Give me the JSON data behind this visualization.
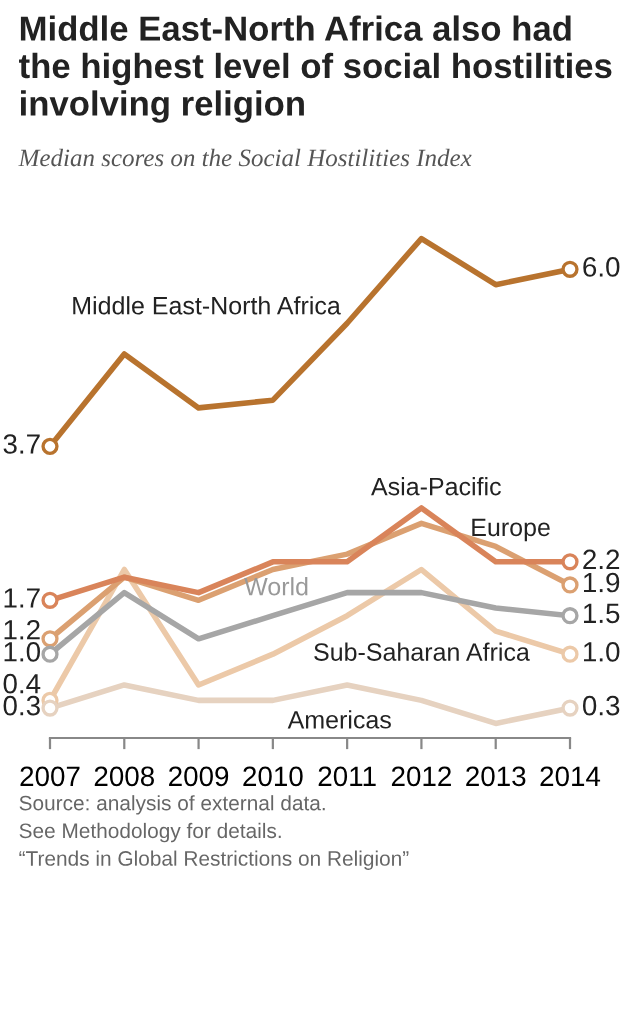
{
  "chart_data": {
    "type": "line",
    "title": "Middle East-North Africa also had the highest level of social hostilities involving religion",
    "subtitle": "Median scores on the Social Hostilities Index",
    "categories": [
      "2007",
      "2008",
      "2009",
      "2010",
      "2011",
      "2012",
      "2013",
      "2014"
    ],
    "tick_labels": "x",
    "grid": false,
    "legend": false,
    "line_style": "solid",
    "series": [
      {
        "name": "Middle East-North Africa",
        "color": "#b8732e",
        "values": [
          3.7,
          4.9,
          4.2,
          4.3,
          5.3,
          6.4,
          5.8,
          6.0
        ],
        "value_labels": [
          "3.7",
          null,
          null,
          null,
          null,
          null,
          null,
          "6.0"
        ]
      },
      {
        "name": "Asia-Pacific",
        "color": "#d9845a",
        "values": [
          1.7,
          2.0,
          1.8,
          2.2,
          2.2,
          2.9,
          2.2,
          2.2
        ],
        "value_labels": [
          "1.7",
          null,
          null,
          null,
          null,
          null,
          null,
          "2.2"
        ]
      },
      {
        "name": "Europe",
        "color": "#dba071",
        "values": [
          1.2,
          2.0,
          1.7,
          2.1,
          2.3,
          2.7,
          2.4,
          1.9
        ],
        "value_labels": [
          "1.2",
          null,
          null,
          null,
          null,
          null,
          null,
          "1.9"
        ]
      },
      {
        "name": "World",
        "color": "#a6a6a6",
        "values": [
          1.0,
          1.8,
          1.2,
          1.5,
          1.8,
          1.8,
          1.6,
          1.5
        ],
        "value_labels": [
          "1.0",
          null,
          null,
          null,
          null,
          null,
          null,
          "1.5"
        ]
      },
      {
        "name": "Sub-Saharan Africa",
        "color": "#ecc9a8",
        "values": [
          0.4,
          2.1,
          0.6,
          1.0,
          1.5,
          2.1,
          1.3,
          1.0
        ],
        "value_labels": [
          "0.4",
          null,
          null,
          null,
          null,
          null,
          null,
          "1.0"
        ]
      },
      {
        "name": "Americas",
        "color": "#e6d2c0",
        "values": [
          0.3,
          0.6,
          0.4,
          0.4,
          0.6,
          0.4,
          0.1,
          0.3
        ],
        "value_labels": [
          "0.3",
          null,
          null,
          null,
          null,
          null,
          null,
          "0.3"
        ]
      }
    ],
    "annotations": [
      "Source: analysis of external data.",
      "See Methodology for details.",
      "“Trends in Global Restrictions on Religion”"
    ]
  }
}
